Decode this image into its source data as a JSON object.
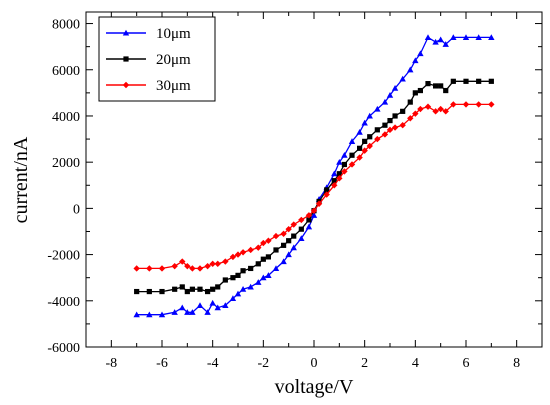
{
  "chart_data": {
    "type": "line",
    "xlabel": "voltage/V",
    "ylabel": "current/nA",
    "xlim": [
      -9,
      9
    ],
    "ylim": [
      -6000,
      8500
    ],
    "xticks": [
      -8,
      -6,
      -4,
      -2,
      0,
      2,
      4,
      6,
      8
    ],
    "yticks": [
      -6000,
      -4000,
      -2000,
      0,
      2000,
      4000,
      6000,
      8000
    ],
    "grid": false,
    "legend_position": "top-left",
    "series": [
      {
        "name": "10μm",
        "color": "#0000ff",
        "marker": "triangle",
        "x": [
          -7,
          -6.5,
          -6,
          -5.5,
          -5.2,
          -5,
          -4.8,
          -4.5,
          -4.2,
          -4,
          -3.8,
          -3.5,
          -3.2,
          -3,
          -2.8,
          -2.5,
          -2.2,
          -2,
          -1.8,
          -1.5,
          -1.2,
          -1,
          -0.8,
          -0.5,
          -0.2,
          0,
          0.2,
          0.5,
          0.8,
          1,
          1.2,
          1.5,
          1.8,
          2,
          2.2,
          2.5,
          2.8,
          3,
          3.2,
          3.5,
          3.8,
          4,
          4.2,
          4.5,
          4.8,
          5,
          5.2,
          5.5,
          6,
          6.5,
          7
        ],
        "y": [
          -4600,
          -4600,
          -4600,
          -4500,
          -4300,
          -4500,
          -4500,
          -4200,
          -4500,
          -4100,
          -4300,
          -4200,
          -3900,
          -3700,
          -3500,
          -3400,
          -3200,
          -3000,
          -2900,
          -2600,
          -2300,
          -2000,
          -1700,
          -1300,
          -800,
          -300,
          400,
          900,
          1500,
          2000,
          2300,
          2900,
          3300,
          3700,
          4000,
          4300,
          4600,
          4900,
          5200,
          5600,
          6000,
          6400,
          6700,
          7400,
          7200,
          7300,
          7100,
          7400,
          7400,
          7400,
          7400
        ]
      },
      {
        "name": "20μm",
        "color": "#000000",
        "marker": "square",
        "x": [
          -7,
          -6.5,
          -6,
          -5.5,
          -5.2,
          -5,
          -4.8,
          -4.5,
          -4.2,
          -4,
          -3.8,
          -3.5,
          -3.2,
          -3,
          -2.8,
          -2.5,
          -2.2,
          -2,
          -1.8,
          -1.5,
          -1.2,
          -1,
          -0.8,
          -0.5,
          -0.2,
          0,
          0.2,
          0.5,
          0.8,
          1,
          1.2,
          1.5,
          1.8,
          2,
          2.2,
          2.5,
          2.8,
          3,
          3.2,
          3.5,
          3.8,
          4,
          4.2,
          4.5,
          4.8,
          5,
          5.2,
          5.5,
          6,
          6.5,
          7
        ],
        "y": [
          -3600,
          -3600,
          -3600,
          -3500,
          -3400,
          -3600,
          -3500,
          -3500,
          -3600,
          -3500,
          -3400,
          -3100,
          -3000,
          -2900,
          -2700,
          -2600,
          -2400,
          -2200,
          -2100,
          -1800,
          -1600,
          -1400,
          -1200,
          -900,
          -500,
          -100,
          300,
          800,
          1200,
          1500,
          1900,
          2300,
          2600,
          2900,
          3100,
          3400,
          3600,
          3800,
          4000,
          4200,
          4600,
          5000,
          5100,
          5400,
          5300,
          5300,
          5100,
          5500,
          5500,
          5500,
          5500
        ]
      },
      {
        "name": "30μm",
        "color": "#ff0000",
        "marker": "diamond",
        "x": [
          -7,
          -6.5,
          -6,
          -5.5,
          -5.2,
          -5,
          -4.8,
          -4.5,
          -4.2,
          -4,
          -3.8,
          -3.5,
          -3.2,
          -3,
          -2.8,
          -2.5,
          -2.2,
          -2,
          -1.8,
          -1.5,
          -1.2,
          -1,
          -0.8,
          -0.5,
          -0.2,
          0,
          0.2,
          0.5,
          0.8,
          1,
          1.2,
          1.5,
          1.8,
          2,
          2.2,
          2.5,
          2.8,
          3,
          3.2,
          3.5,
          3.8,
          4,
          4.2,
          4.5,
          4.8,
          5,
          5.2,
          5.5,
          6,
          6.5,
          7
        ],
        "y": [
          -2600,
          -2600,
          -2600,
          -2500,
          -2300,
          -2500,
          -2600,
          -2600,
          -2500,
          -2400,
          -2400,
          -2300,
          -2100,
          -2000,
          -1900,
          -1800,
          -1700,
          -1500,
          -1400,
          -1200,
          -1100,
          -900,
          -700,
          -500,
          -300,
          -100,
          200,
          600,
          1000,
          1300,
          1600,
          1900,
          2200,
          2500,
          2700,
          3000,
          3200,
          3400,
          3500,
          3600,
          3900,
          4100,
          4300,
          4400,
          4200,
          4300,
          4200,
          4500,
          4500,
          4500,
          4500
        ]
      }
    ]
  }
}
